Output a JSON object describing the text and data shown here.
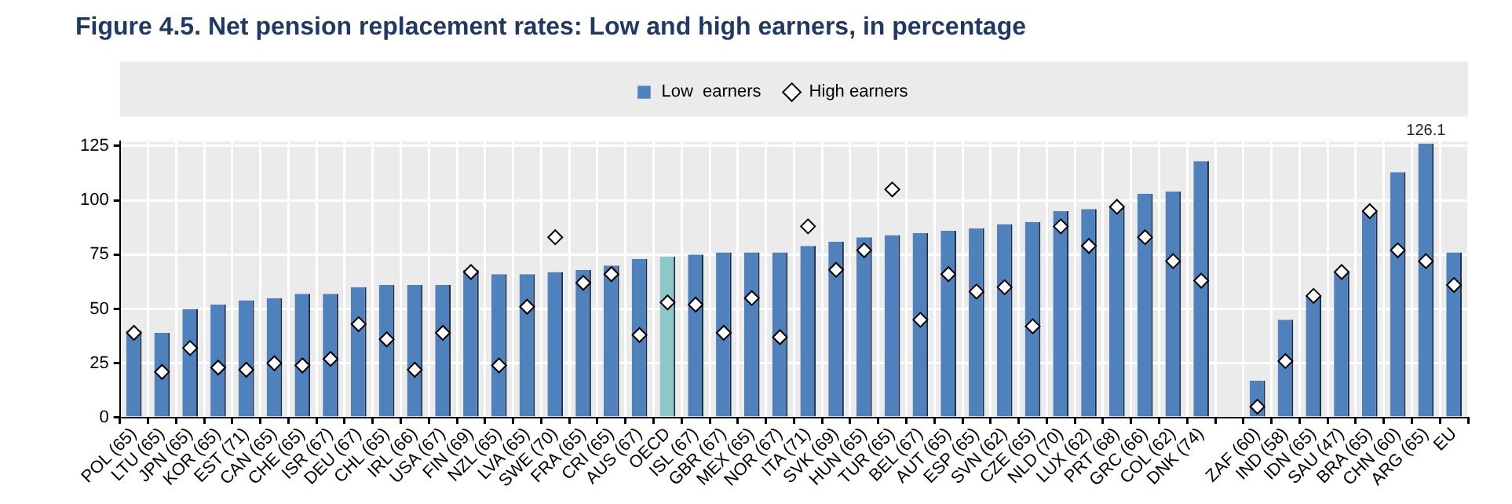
{
  "chart_data": {
    "type": "bar",
    "title": "Figure 4.5. Net pension replacement rates: Low and high earners, in percentage",
    "categories": [
      "POL (65)",
      "LTU (65)",
      "JPN (65)",
      "KOR (65)",
      "EST (71)",
      "CAN (65)",
      "CHE (65)",
      "ISR (67)",
      "DEU (67)",
      "CHL (65)",
      "IRL (66)",
      "USA (67)",
      "FIN (69)",
      "NZL (65)",
      "LVA (65)",
      "SWE (70)",
      "FRA (65)",
      "CRI (65)",
      "AUS (67)",
      "OECD",
      "ISL (67)",
      "GBR (67)",
      "MEX (65)",
      "NOR (67)",
      "ITA (71)",
      "SVK (69)",
      "HUN (65)",
      "TUR (65)",
      "BEL (67)",
      "AUT (65)",
      "ESP (65)",
      "SVN (62)",
      "CZE (65)",
      "NLD (70)",
      "LUX (62)",
      "PRT (68)",
      "GRC (66)",
      "COL (62)",
      "DNK (74)",
      null,
      "ZAF (60)",
      "IND (58)",
      "IDN (65)",
      "SAU (47)",
      "BRA (65)",
      "CHN (60)",
      "ARG (65)",
      "EU"
    ],
    "series": [
      {
        "name": "Low  earners",
        "color": "#4f81bd",
        "colors": [
          "#4f81bd",
          "#4f81bd",
          "#4f81bd",
          "#4f81bd",
          "#4f81bd",
          "#4f81bd",
          "#4f81bd",
          "#4f81bd",
          "#4f81bd",
          "#4f81bd",
          "#4f81bd",
          "#4f81bd",
          "#4f81bd",
          "#4f81bd",
          "#4f81bd",
          "#4f81bd",
          "#4f81bd",
          "#4f81bd",
          "#4f81bd",
          "#8cc8c8",
          "#4f81bd",
          "#4f81bd",
          "#4f81bd",
          "#4f81bd",
          "#4f81bd",
          "#4f81bd",
          "#4f81bd",
          "#4f81bd",
          "#4f81bd",
          "#4f81bd",
          "#4f81bd",
          "#4f81bd",
          "#4f81bd",
          "#4f81bd",
          "#4f81bd",
          "#4f81bd",
          "#4f81bd",
          "#4f81bd",
          "#4f81bd",
          "#4f81bd",
          "#4f81bd",
          "#4f81bd",
          "#4f81bd",
          "#4f81bd",
          "#4f81bd",
          "#4f81bd",
          "#4f81bd",
          "#4f81bd"
        ],
        "values": [
          40,
          39,
          50,
          52,
          54,
          55,
          57,
          57,
          60,
          61,
          61,
          61,
          68,
          66,
          66,
          67,
          68,
          70,
          73,
          74,
          75,
          76,
          76,
          76,
          79,
          81,
          83,
          84,
          85,
          86,
          87,
          89,
          90,
          95,
          96,
          97,
          103,
          104,
          118,
          null,
          17,
          45,
          56,
          67,
          95,
          113,
          126.1,
          76
        ],
        "value_labels": [
          null,
          null,
          null,
          null,
          null,
          null,
          null,
          null,
          null,
          null,
          null,
          null,
          null,
          null,
          null,
          null,
          null,
          null,
          null,
          null,
          null,
          null,
          null,
          null,
          null,
          null,
          null,
          null,
          null,
          null,
          null,
          null,
          null,
          null,
          null,
          null,
          null,
          null,
          null,
          null,
          null,
          null,
          null,
          null,
          null,
          null,
          "126.1",
          null
        ]
      },
      {
        "name": "High earners",
        "type": "scatter",
        "color": "#ffffff",
        "marker": "diamond",
        "values": [
          39,
          21,
          32,
          23,
          22,
          25,
          24,
          27,
          43,
          36,
          22,
          39,
          67,
          24,
          51,
          83,
          62,
          66,
          38,
          53,
          52,
          39,
          55,
          37,
          88,
          68,
          77,
          105,
          45,
          66,
          58,
          60,
          42,
          88,
          79,
          97,
          83,
          72,
          63,
          null,
          5,
          26,
          56,
          67,
          95,
          77,
          72,
          61
        ]
      }
    ],
    "ylim": [
      0,
      127
    ],
    "yticks": [
      0,
      25,
      50,
      75,
      100,
      125
    ],
    "grid": true,
    "legend": "top"
  }
}
